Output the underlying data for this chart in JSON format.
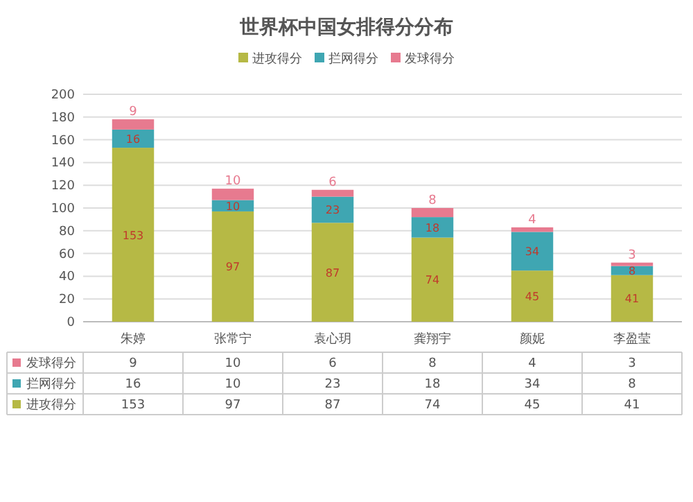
{
  "chart_data": {
    "type": "bar",
    "title": "世界杯中国女排得分分布",
    "stacked": true,
    "categories": [
      "朱婷",
      "张常宁",
      "袁心玥",
      "龚翔宇",
      "颜妮",
      "李盈莹"
    ],
    "series": [
      {
        "name": "进攻得分",
        "color": "#b6b945",
        "values": [
          153,
          97,
          87,
          74,
          45,
          41
        ],
        "value_labels": [
          "153",
          "97",
          "87",
          "74",
          "45",
          "41"
        ]
      },
      {
        "name": "拦网得分",
        "color": "#3fa6b2",
        "values": [
          16,
          10,
          23,
          18,
          34,
          8
        ],
        "value_labels": [
          "16",
          "10",
          "23",
          "18",
          "34",
          "8"
        ]
      },
      {
        "name": "发球得分",
        "color": "#e77a8f",
        "values": [
          9,
          10,
          6,
          8,
          4,
          3
        ],
        "value_labels": [
          "9",
          "10",
          "6",
          "8",
          "4",
          "3"
        ]
      }
    ],
    "ylim": [
      0,
      200
    ],
    "yticks": [
      0,
      20,
      40,
      60,
      80,
      100,
      120,
      140,
      160,
      180,
      200
    ],
    "grid": "y",
    "legend": "top",
    "annotations": [
      "9",
      "10",
      "6",
      "8",
      "4",
      "3",
      "16",
      "10",
      "23",
      "18",
      "34",
      "8",
      "153",
      "97",
      "87",
      "74",
      "45",
      "41"
    ]
  }
}
